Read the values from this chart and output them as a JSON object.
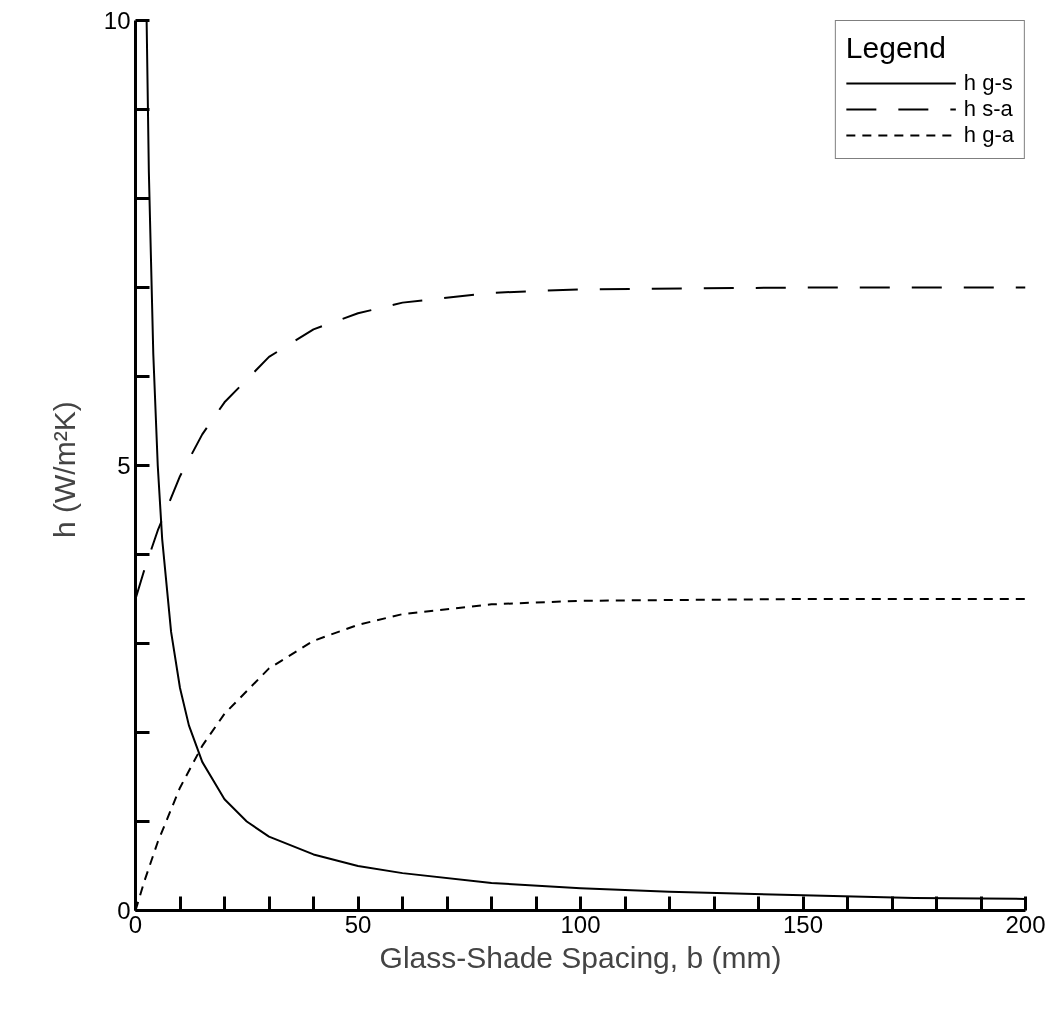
{
  "chart_data": {
    "type": "line",
    "xlabel": "Glass-Shade Spacing, b (mm)",
    "ylabel": "h  (W/m²K)",
    "legend_title": "Legend",
    "xlim": [
      0,
      200
    ],
    "ylim": [
      0,
      10
    ],
    "xticks": [
      0,
      {
        "value": 10,
        "label": null
      },
      {
        "value": 20,
        "label": null
      },
      {
        "value": 30,
        "label": null
      },
      {
        "value": 40,
        "label": null
      },
      50,
      {
        "value": 60,
        "label": null
      },
      {
        "value": 70,
        "label": null
      },
      {
        "value": 80,
        "label": null
      },
      {
        "value": 90,
        "label": null
      },
      100,
      {
        "value": 110,
        "label": null
      },
      {
        "value": 120,
        "label": null
      },
      {
        "value": 130,
        "label": null
      },
      {
        "value": 140,
        "label": null
      },
      150,
      {
        "value": 160,
        "label": null
      },
      {
        "value": 170,
        "label": null
      },
      {
        "value": 180,
        "label": null
      },
      {
        "value": 190,
        "label": null
      },
      200
    ],
    "yticks": [
      0,
      {
        "value": 1,
        "label": null
      },
      {
        "value": 2,
        "label": null
      },
      {
        "value": 3,
        "label": null
      },
      {
        "value": 4,
        "label": null
      },
      5,
      {
        "value": 6,
        "label": null
      },
      {
        "value": 7,
        "label": null
      },
      {
        "value": 8,
        "label": null
      },
      {
        "value": 9,
        "label": null
      },
      10
    ],
    "grid": false,
    "legend": "top right",
    "marker": "none",
    "series": [
      {
        "name": "h g-s",
        "color": "#000000",
        "line_style": "solid",
        "x": [
          2.5,
          3,
          4,
          5,
          6,
          8,
          10,
          12,
          15,
          20,
          25,
          30,
          40,
          50,
          60,
          80,
          100,
          120,
          150,
          175,
          200
        ],
        "values": [
          10,
          8.3,
          6.25,
          5,
          4.17,
          3.13,
          2.5,
          2.08,
          1.67,
          1.25,
          1.0,
          0.83,
          0.63,
          0.5,
          0.42,
          0.31,
          0.25,
          0.21,
          0.17,
          0.14,
          0.13
        ]
      },
      {
        "name": "h s-a",
        "color": "#000000",
        "line_style": "dashed",
        "x": [
          0,
          2,
          5,
          10,
          15,
          20,
          30,
          40,
          50,
          60,
          80,
          100,
          150,
          200
        ],
        "values": [
          3.5,
          3.83,
          4.27,
          4.88,
          5.35,
          5.71,
          6.22,
          6.53,
          6.71,
          6.83,
          6.94,
          6.98,
          7.0,
          7.0
        ]
      },
      {
        "name": "h g-a",
        "color": "#000000",
        "line_style": "dashed",
        "x": [
          0,
          2,
          5,
          10,
          15,
          20,
          30,
          40,
          50,
          60,
          80,
          100,
          150,
          200
        ],
        "values": [
          0,
          0.33,
          0.77,
          1.38,
          1.85,
          2.21,
          2.72,
          3.03,
          3.21,
          3.33,
          3.44,
          3.48,
          3.5,
          3.5
        ]
      }
    ]
  }
}
